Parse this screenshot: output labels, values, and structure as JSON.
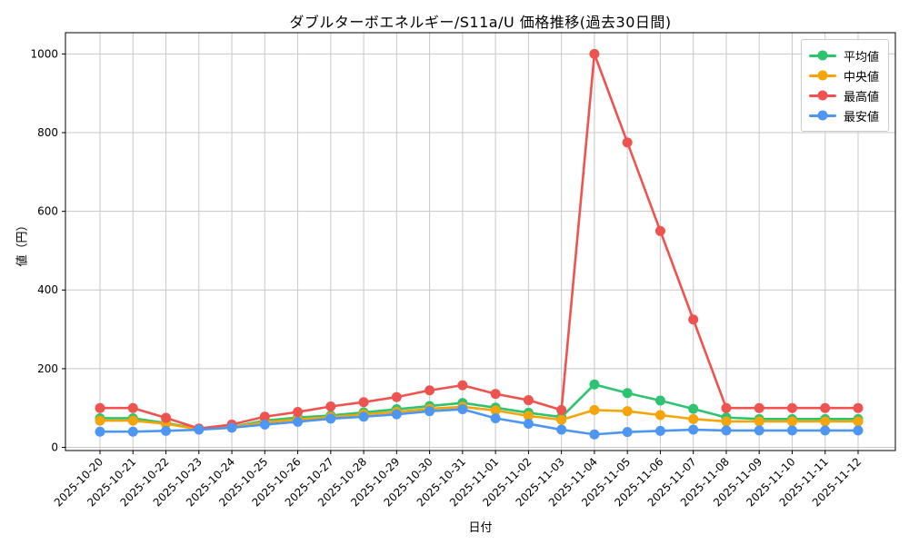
{
  "chart_data": {
    "type": "line",
    "title": "ダブルターボエネルギー/S11a/U 価格推移(過去30日間)",
    "xlabel": "日付",
    "ylabel": "値（円）",
    "grid": true,
    "legend_position": "upper right",
    "marker": "circle",
    "yticks": [
      0,
      200,
      400,
      600,
      800,
      1000
    ],
    "ylim": [
      -8,
      1054
    ],
    "x": [
      "2025-10-20",
      "2025-10-21",
      "2025-10-22",
      "2025-10-23",
      "2025-10-24",
      "2025-10-25",
      "2025-10-26",
      "2025-10-27",
      "2025-10-28",
      "2025-10-29",
      "2025-10-30",
      "2025-10-31",
      "2025-11-01",
      "2025-11-02",
      "2025-11-03",
      "2025-11-04",
      "2025-11-05",
      "2025-11-06",
      "2025-11-07",
      "2025-11-08",
      "2025-11-09",
      "2025-11-10",
      "2025-11-11",
      "2025-11-12"
    ],
    "series": [
      {
        "key": "avg",
        "name": "平均値",
        "color": "#2EC46F",
        "values": [
          74,
          74,
          62,
          47,
          52,
          68,
          76,
          81,
          89,
          97,
          105,
          113,
          101,
          88,
          77,
          160,
          138,
          119,
          98,
          76,
          72,
          72,
          72,
          72
        ]
      },
      {
        "key": "median",
        "name": "中央値",
        "color": "#F5A409",
        "values": [
          68,
          68,
          60,
          46,
          51,
          64,
          71,
          77,
          84,
          90,
          98,
          103,
          94,
          80,
          70,
          95,
          92,
          82,
          72,
          66,
          66,
          66,
          66,
          66
        ]
      },
      {
        "key": "max",
        "name": "最高値",
        "color": "#EF5350",
        "values": [
          100,
          100,
          75,
          48,
          58,
          78,
          90,
          104,
          115,
          128,
          145,
          158,
          136,
          120,
          95,
          1000,
          775,
          550,
          325,
          100,
          100,
          100,
          100,
          100
        ]
      },
      {
        "key": "min",
        "name": "最安値",
        "color": "#4D96F2",
        "values": [
          40,
          40,
          42,
          45,
          50,
          58,
          65,
          73,
          78,
          84,
          92,
          97,
          74,
          60,
          45,
          33,
          39,
          42,
          45,
          43,
          43,
          43,
          43,
          43
        ]
      }
    ]
  },
  "colors": {
    "background": "#ffffff",
    "grid": "#c8c8c8",
    "spine": "#000000",
    "tick_text": "#000000",
    "legend_border": "#cccccc"
  }
}
